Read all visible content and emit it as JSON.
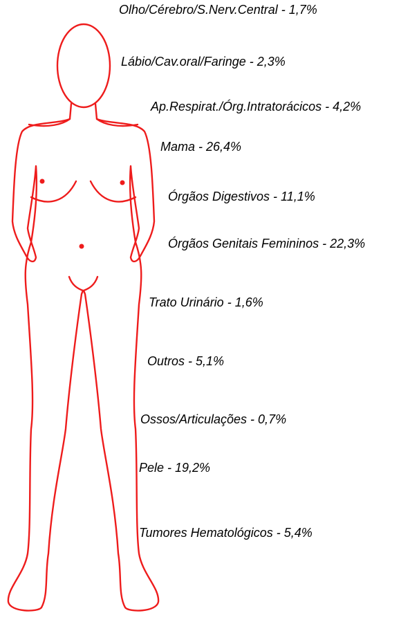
{
  "labels": [
    "Olho/Cérebro/S.Nerv.Central - 1,7%",
    "Lábio/Cav.oral/Faringe - 2,3%",
    "Ap.Respirat./Órg.Intratorácicos - 4,2%",
    "Mama - 26,4%",
    "Órgãos Digestivos - 11,1%",
    "Órgãos Genitais Femininos - 22,3%",
    "Trato Urinário - 1,6%",
    "Outros - 5,1%",
    "Ossos/Articulações - 0,7%",
    "Pele - 19,2%",
    "Tumores Hematológicos - 5,4%"
  ]
}
